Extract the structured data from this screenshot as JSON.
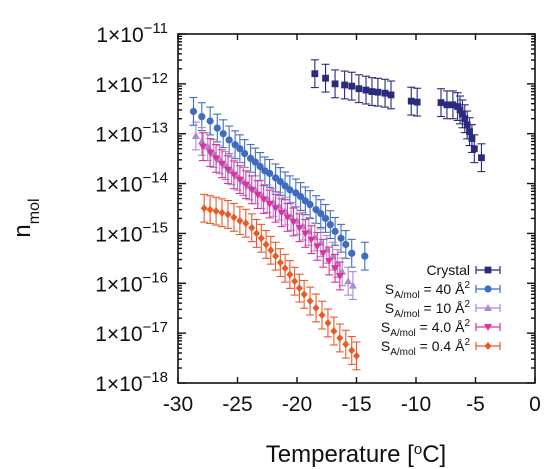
{
  "chart_data": {
    "type": "scatter",
    "title": "",
    "xlabel": "Temperature [°C]",
    "ylabel": "n_mol",
    "xlim": [
      -30,
      0
    ],
    "ylim_exponent": [
      -18,
      -11
    ],
    "y_scale": "log",
    "grid": false,
    "legend_position": "bottom-right",
    "x_ticks": [
      "-30",
      "-25",
      "-20",
      "-15",
      "-10",
      "-5",
      "0"
    ],
    "y_ticks": [
      "1×10−11",
      "1×10−12",
      "1×10−13",
      "1×10−14",
      "1×10−15",
      "1×10−16",
      "1×10−17",
      "1×10−18"
    ],
    "series": [
      {
        "name": "Crystal",
        "color": "#2b2a7f",
        "marker": "square",
        "points": [
          [
            -18.5,
            1.6e-12
          ],
          [
            -17.6,
            1.3e-12
          ],
          [
            -16.8,
            1e-12
          ],
          [
            -16.0,
            9.5e-13
          ],
          [
            -15.4,
            9e-13
          ],
          [
            -14.8,
            8e-13
          ],
          [
            -14.2,
            7.5e-13
          ],
          [
            -13.7,
            7e-13
          ],
          [
            -13.2,
            6.8e-13
          ],
          [
            -12.6,
            6.5e-13
          ],
          [
            -12.1,
            6e-13
          ],
          [
            -10.4,
            4.5e-13
          ],
          [
            -9.9,
            4.3e-13
          ],
          [
            -7.9,
            4.2e-13
          ],
          [
            -7.4,
            3.8e-13
          ],
          [
            -6.9,
            3.8e-13
          ],
          [
            -6.5,
            3.5e-13
          ],
          [
            -6.3,
            3e-13
          ],
          [
            -6.1,
            2.5e-13
          ],
          [
            -5.9,
            2e-13
          ],
          [
            -5.7,
            1.5e-13
          ],
          [
            -5.5,
            1.1e-13
          ],
          [
            -5.3,
            8e-14
          ],
          [
            -5.1,
            5e-14
          ],
          [
            -4.5,
            3.3e-14
          ]
        ]
      },
      {
        "name": "S_A/mol = 40 Å²",
        "color": "#3f6cc0",
        "marker": "circle",
        "points": [
          [
            -28.7,
            2.8e-13
          ],
          [
            -28.0,
            2.2e-13
          ],
          [
            -27.3,
            1.8e-13
          ],
          [
            -26.7,
            1.3e-13
          ],
          [
            -26.2,
            1e-13
          ],
          [
            -25.7,
            7.5e-14
          ],
          [
            -25.2,
            6e-14
          ],
          [
            -24.8,
            5e-14
          ],
          [
            -24.4,
            4e-14
          ],
          [
            -23.9,
            3.2e-14
          ],
          [
            -23.5,
            2.7e-14
          ],
          [
            -23.1,
            2.2e-14
          ],
          [
            -22.7,
            1.8e-14
          ],
          [
            -22.3,
            1.6e-14
          ],
          [
            -21.8,
            1.3e-14
          ],
          [
            -21.4,
            1.1e-14
          ],
          [
            -21.0,
            9e-15
          ],
          [
            -20.6,
            7.5e-15
          ],
          [
            -20.1,
            6.5e-15
          ],
          [
            -19.7,
            5.5e-15
          ],
          [
            -19.3,
            4.5e-15
          ],
          [
            -18.9,
            3.8e-15
          ],
          [
            -18.4,
            3e-15
          ],
          [
            -18.0,
            2.5e-15
          ],
          [
            -17.6,
            2e-15
          ],
          [
            -17.2,
            1.5e-15
          ],
          [
            -16.8,
            1.1e-15
          ],
          [
            -16.3,
            8e-16
          ],
          [
            -15.9,
            6e-16
          ],
          [
            -15.4,
            4e-16
          ],
          [
            -14.3,
            3.5e-16
          ]
        ]
      },
      {
        "name": "S_A/mol = 10 Å²",
        "color": "#a98ad3",
        "marker": "triangle-up",
        "points": [
          [
            -28.5,
            9e-14
          ],
          [
            -28.0,
            7e-14
          ],
          [
            -27.5,
            5.5e-14
          ],
          [
            -27.0,
            4e-14
          ],
          [
            -26.5,
            3e-14
          ],
          [
            -26.0,
            2.3e-14
          ],
          [
            -25.5,
            1.8e-14
          ],
          [
            -25.0,
            1.4e-14
          ],
          [
            -24.5,
            1.1e-14
          ],
          [
            -24.0,
            9e-15
          ],
          [
            -23.5,
            7.5e-15
          ],
          [
            -23.0,
            6e-15
          ],
          [
            -22.5,
            5e-15
          ],
          [
            -22.0,
            4.2e-15
          ],
          [
            -21.5,
            3.5e-15
          ],
          [
            -21.0,
            2.8e-15
          ],
          [
            -20.5,
            2.2e-15
          ],
          [
            -20.0,
            1.8e-15
          ],
          [
            -19.5,
            1.4e-15
          ],
          [
            -19.0,
            1.1e-15
          ],
          [
            -18.5,
            8.5e-16
          ],
          [
            -18.0,
            6.5e-16
          ],
          [
            -17.5,
            4.8e-16
          ],
          [
            -17.0,
            3.5e-16
          ],
          [
            -16.6,
            2.5e-16
          ],
          [
            -16.2,
            1.7e-16
          ],
          [
            -15.7,
            1.1e-16
          ],
          [
            -15.3,
            9e-17
          ]
        ]
      },
      {
        "name": "S_A/mol = 4.0 Å²",
        "color": "#e0309a",
        "marker": "triangle-down",
        "points": [
          [
            -27.9,
            5.5e-14
          ],
          [
            -27.3,
            4.2e-14
          ],
          [
            -26.8,
            3.2e-14
          ],
          [
            -26.3,
            2.5e-14
          ],
          [
            -25.8,
            1.9e-14
          ],
          [
            -25.3,
            1.5e-14
          ],
          [
            -24.8,
            1.2e-14
          ],
          [
            -24.3,
            9.5e-15
          ],
          [
            -23.8,
            7.5e-15
          ],
          [
            -23.3,
            6e-15
          ],
          [
            -22.8,
            4.8e-15
          ],
          [
            -22.3,
            3.9e-15
          ],
          [
            -21.8,
            3.2e-15
          ],
          [
            -21.3,
            2.6e-15
          ],
          [
            -20.8,
            2.1e-15
          ],
          [
            -20.3,
            1.7e-15
          ],
          [
            -19.8,
            1.3e-15
          ],
          [
            -19.3,
            1e-15
          ],
          [
            -18.8,
            7.5e-16
          ],
          [
            -18.3,
            5.5e-16
          ],
          [
            -17.8,
            4e-16
          ],
          [
            -17.3,
            2.8e-16
          ],
          [
            -16.8,
            2e-16
          ],
          [
            -16.4,
            1.4e-16
          ]
        ]
      },
      {
        "name": "S_A/mol = 0.4 Å²",
        "color": "#ea5a28",
        "marker": "diamond",
        "points": [
          [
            -27.8,
            3.2e-15
          ],
          [
            -27.3,
            3e-15
          ],
          [
            -26.8,
            2.8e-15
          ],
          [
            -26.3,
            2.6e-15
          ],
          [
            -25.8,
            2.4e-15
          ],
          [
            -25.3,
            2.1e-15
          ],
          [
            -24.8,
            1.8e-15
          ],
          [
            -24.3,
            1.6e-15
          ],
          [
            -23.8,
            1.3e-15
          ],
          [
            -23.4,
            1e-15
          ],
          [
            -23.0,
            8e-16
          ],
          [
            -22.6,
            6e-16
          ],
          [
            -22.2,
            4.6e-16
          ],
          [
            -21.8,
            3.5e-16
          ],
          [
            -21.4,
            2.6e-16
          ],
          [
            -21.0,
            2e-16
          ],
          [
            -20.6,
            1.5e-16
          ],
          [
            -20.2,
            1.1e-16
          ],
          [
            -19.8,
            8e-17
          ],
          [
            -19.4,
            6e-17
          ],
          [
            -18.9,
            4.4e-17
          ],
          [
            -18.4,
            3.2e-17
          ],
          [
            -17.9,
            2.3e-17
          ],
          [
            -17.4,
            1.6e-17
          ],
          [
            -16.9,
            1.1e-17
          ],
          [
            -16.4,
            8e-18
          ],
          [
            -15.9,
            6e-18
          ],
          [
            -15.4,
            4.5e-18
          ],
          [
            -15.0,
            3.5e-18
          ]
        ]
      }
    ]
  }
}
